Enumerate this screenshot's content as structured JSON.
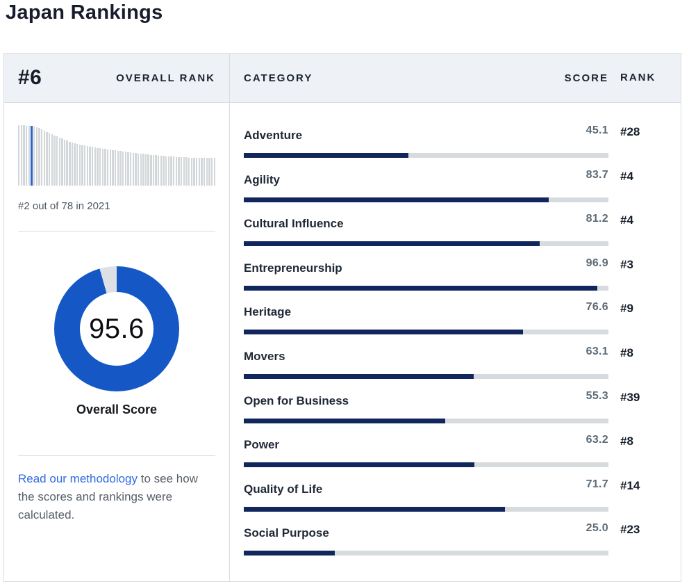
{
  "page_title": "Japan Rankings",
  "colors": {
    "accent_navy": "#12265e",
    "track_gray": "#d8dbdd",
    "donut_blue": "#1557c5",
    "donut_track": "#dde1e5",
    "spark_gray": "#d3d7da",
    "spark_highlight_blue": "#2b62c6",
    "link_blue": "#2e6be2"
  },
  "overview": {
    "rank": "#6",
    "rank_label": "OVERALL RANK",
    "histogram_caption": "#2 out of 78 in 2021",
    "donut": {
      "score": "95.6",
      "percent": 95.6,
      "label": "Overall Score"
    },
    "methodology": {
      "link_text": "Read our methodology",
      "rest_text": " to see how the scores and rankings were calculated."
    }
  },
  "table": {
    "headers": {
      "category": "CATEGORY",
      "score": "SCORE",
      "rank": "RANK"
    },
    "rows": [
      {
        "category": "Adventure",
        "score": "45.1",
        "percent": 45.1,
        "rank": "#28"
      },
      {
        "category": "Agility",
        "score": "83.7",
        "percent": 83.7,
        "rank": "#4"
      },
      {
        "category": "Cultural Influence",
        "score": "81.2",
        "percent": 81.2,
        "rank": "#4"
      },
      {
        "category": "Entrepreneurship",
        "score": "96.9",
        "percent": 96.9,
        "rank": "#3"
      },
      {
        "category": "Heritage",
        "score": "76.6",
        "percent": 76.6,
        "rank": "#9"
      },
      {
        "category": "Movers",
        "score": "63.1",
        "percent": 63.1,
        "rank": "#8"
      },
      {
        "category": "Open for Business",
        "score": "55.3",
        "percent": 55.3,
        "rank": "#39"
      },
      {
        "category": "Power",
        "score": "63.2",
        "percent": 63.2,
        "rank": "#8"
      },
      {
        "category": "Quality of Life",
        "score": "71.7",
        "percent": 71.7,
        "rank": "#14"
      },
      {
        "category": "Social Purpose",
        "score": "25.0",
        "percent": 25.0,
        "rank": "#23"
      }
    ]
  },
  "chart_data": [
    {
      "type": "bar",
      "title": "Overall rank distribution (78 countries, descending score)",
      "values": [
        87,
        87,
        87,
        86,
        86,
        86,
        85,
        84,
        83,
        81,
        79,
        77,
        76,
        74,
        72,
        71,
        69,
        68,
        66,
        65,
        63,
        62,
        61,
        60,
        59,
        58,
        58,
        57,
        56,
        56,
        55,
        54,
        54,
        53,
        53,
        52,
        52,
        51,
        51,
        50,
        50,
        49,
        49,
        48,
        48,
        47,
        47,
        46,
        46,
        46,
        45,
        45,
        44,
        44,
        44,
        43,
        43,
        43,
        42,
        42,
        42,
        42,
        41,
        41,
        41,
        41,
        41,
        40,
        40,
        40,
        40,
        40,
        40,
        40,
        40,
        40,
        40,
        40
      ],
      "highlight_index": 5,
      "annotation": "#2 out of 78 in 2021",
      "legend_position": "none",
      "grid": false
    },
    {
      "type": "pie",
      "title": "Overall Score donut",
      "categories": [
        "Overall Score",
        "Remainder"
      ],
      "values": [
        95.6,
        4.4
      ],
      "center_label": "95.6"
    },
    {
      "type": "bar",
      "title": "Category scores (0-100)",
      "categories": [
        "Adventure",
        "Agility",
        "Cultural Influence",
        "Entrepreneurship",
        "Heritage",
        "Movers",
        "Open for Business",
        "Power",
        "Quality of Life",
        "Social Purpose"
      ],
      "values": [
        45.1,
        83.7,
        81.2,
        96.9,
        76.6,
        63.1,
        55.3,
        63.2,
        71.7,
        25.0
      ],
      "ranks": [
        "#28",
        "#4",
        "#4",
        "#3",
        "#9",
        "#8",
        "#39",
        "#8",
        "#14",
        "#23"
      ],
      "xlim": [
        0,
        100
      ],
      "grid": false,
      "legend_position": "none"
    }
  ]
}
